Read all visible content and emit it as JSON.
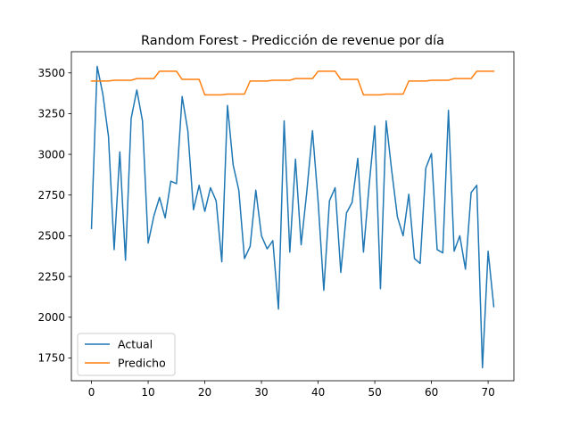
{
  "chart_data": {
    "type": "line",
    "title": "Random Forest - Predicción de revenue por día",
    "xlabel": "",
    "ylabel": "",
    "xlim": [
      -3.55,
      74.55
    ],
    "ylim": [
      1610,
      3630
    ],
    "xticks": [
      0,
      10,
      20,
      30,
      40,
      50,
      60,
      70
    ],
    "yticks": [
      1750,
      2000,
      2250,
      2500,
      2750,
      3000,
      3250,
      3500
    ],
    "grid": false,
    "legend_position": "lower-left",
    "series": [
      {
        "name": "Actual",
        "color": "#1f77b4",
        "x": [
          0,
          1,
          2,
          3,
          4,
          5,
          6,
          7,
          8,
          9,
          10,
          11,
          12,
          13,
          14,
          15,
          16,
          17,
          18,
          19,
          20,
          21,
          22,
          23,
          24,
          25,
          26,
          27,
          28,
          29,
          30,
          31,
          32,
          33,
          34,
          35,
          36,
          37,
          38,
          39,
          40,
          41,
          42,
          43,
          44,
          45,
          46,
          47,
          48,
          49,
          50,
          51,
          52,
          53,
          54,
          55,
          56,
          57,
          58,
          59,
          60,
          61,
          62,
          63,
          64,
          65,
          66,
          67,
          68,
          69,
          70,
          71
        ],
        "values": [
          2545,
          3540,
          3370,
          3110,
          2415,
          3015,
          2350,
          3220,
          3395,
          3205,
          2455,
          2620,
          2735,
          2610,
          2835,
          2820,
          3355,
          3145,
          2660,
          2810,
          2650,
          2795,
          2715,
          2340,
          3300,
          2935,
          2780,
          2360,
          2435,
          2780,
          2500,
          2420,
          2470,
          2050,
          3205,
          2400,
          2970,
          2445,
          2770,
          3145,
          2710,
          2165,
          2715,
          2795,
          2275,
          2640,
          2705,
          2975,
          2400,
          2810,
          3175,
          2175,
          3205,
          2895,
          2615,
          2500,
          2755,
          2360,
          2330,
          2915,
          3005,
          2415,
          2395,
          3270,
          2405,
          2500,
          2295,
          2765,
          2810,
          1690,
          2405,
          2065
        ]
      },
      {
        "name": "Predicho",
        "color": "#ff7f0e",
        "x": [
          0,
          1,
          2,
          3,
          4,
          5,
          6,
          7,
          8,
          9,
          10,
          11,
          12,
          13,
          14,
          15,
          16,
          17,
          18,
          19,
          20,
          21,
          22,
          23,
          24,
          25,
          26,
          27,
          28,
          29,
          30,
          31,
          32,
          33,
          34,
          35,
          36,
          37,
          38,
          39,
          40,
          41,
          42,
          43,
          44,
          45,
          46,
          47,
          48,
          49,
          50,
          51,
          52,
          53,
          54,
          55,
          56,
          57,
          58,
          59,
          60,
          61,
          62,
          63,
          64,
          65,
          66,
          67,
          68,
          69,
          70,
          71
        ],
        "values": [
          3450,
          3450,
          3450,
          3450,
          3455,
          3455,
          3455,
          3455,
          3465,
          3465,
          3465,
          3465,
          3510,
          3510,
          3510,
          3510,
          3460,
          3460,
          3460,
          3460,
          3365,
          3365,
          3365,
          3365,
          3370,
          3370,
          3370,
          3370,
          3450,
          3450,
          3450,
          3450,
          3455,
          3455,
          3455,
          3455,
          3465,
          3465,
          3465,
          3465,
          3510,
          3510,
          3510,
          3510,
          3460,
          3460,
          3460,
          3460,
          3365,
          3365,
          3365,
          3365,
          3370,
          3370,
          3370,
          3370,
          3450,
          3450,
          3450,
          3450,
          3455,
          3455,
          3455,
          3455,
          3465,
          3465,
          3465,
          3465,
          3510,
          3510,
          3510,
          3510
        ]
      }
    ]
  }
}
